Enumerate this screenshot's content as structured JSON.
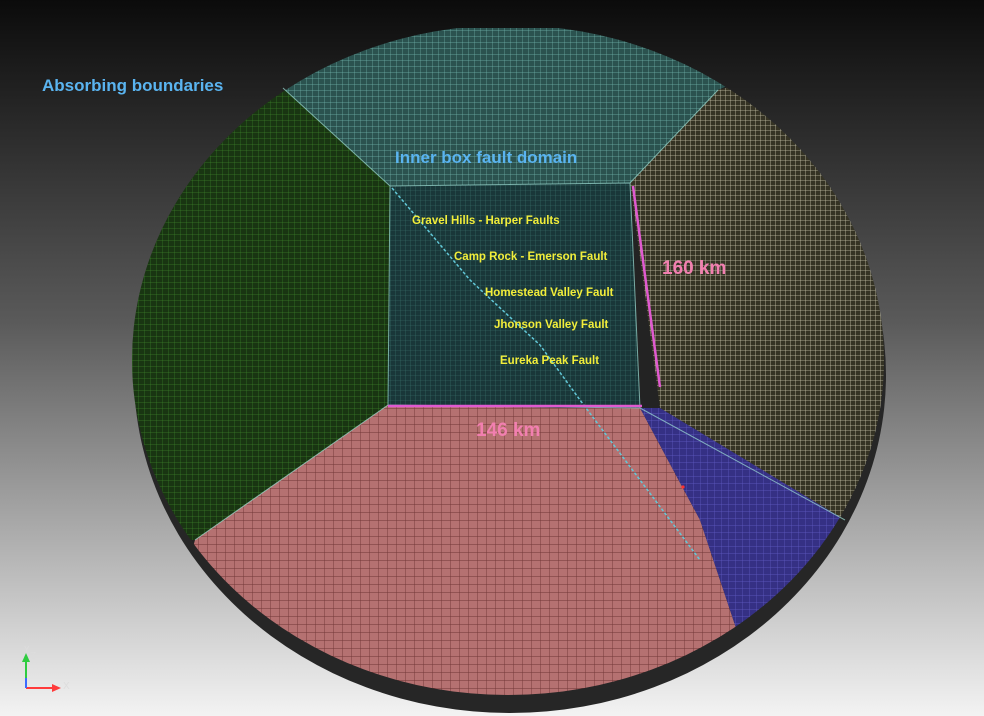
{
  "labels": {
    "absorbing": "Absorbing boundaries",
    "inner_box": "Inner box fault domain",
    "dim_vertical": "160 km",
    "dim_horizontal": "146 km"
  },
  "faults": [
    "Gravel Hills - Harper Faults",
    "Camp Rock - Emerson Fault",
    "Homestead Valley Fault",
    "Jhonson Valley Fault",
    "Eureka Peak Fault"
  ],
  "axes": {
    "x": "X",
    "y": "Y",
    "z": "Z"
  },
  "colors": {
    "background_top": "#0d0d0d",
    "background_bottom": "#f2f2f2",
    "mesh_top": "#5aa39a",
    "mesh_left": "#2e6b22",
    "mesh_right": "#c9c6ad",
    "mesh_bottom": "#c97a7a",
    "mesh_bottom_right": "#4d47b5",
    "inner_box": "#2e7070",
    "fault_line": "#62c8d8",
    "dimension_line": "#e05ad0",
    "title_text": "#5ab4f0",
    "fault_text": "#f2ee3a",
    "dimension_text": "#f27fb0"
  }
}
